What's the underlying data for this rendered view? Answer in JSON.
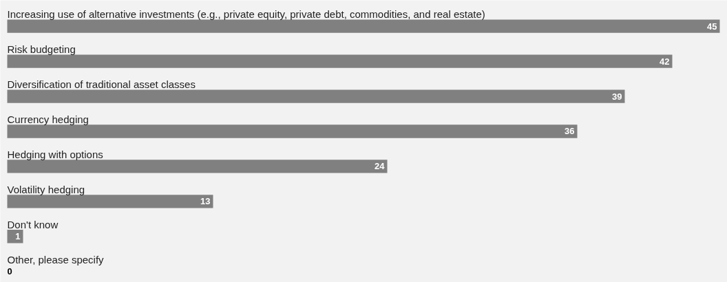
{
  "chart_data": {
    "type": "bar",
    "orientation": "horizontal",
    "data_labels": true,
    "color": "#808080",
    "categories": [
      "Increasing use of alternative investments (e.g., private equity, private debt, commodities, and real estate)",
      "Risk budgeting",
      "Diversification of traditional asset classes",
      "Currency hedging",
      "Hedging with options",
      "Volatility hedging",
      "Don't know",
      "Other, please specify"
    ],
    "values": [
      45,
      42,
      39,
      36,
      24,
      13,
      1,
      0
    ]
  }
}
